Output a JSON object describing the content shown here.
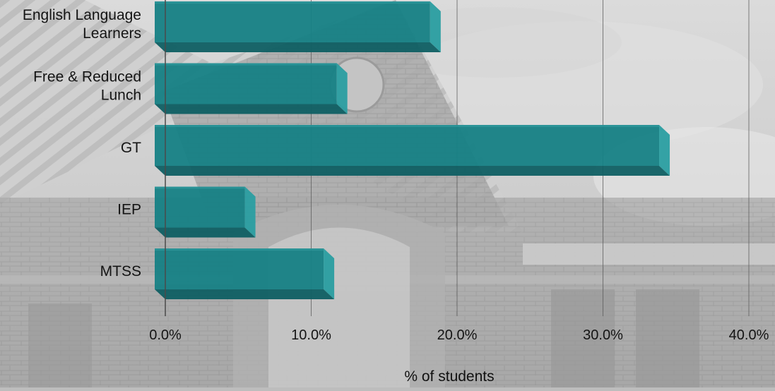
{
  "chart_data": {
    "type": "bar",
    "orientation": "horizontal",
    "style": "3d",
    "categories": [
      [
        "English Language",
        "Learners"
      ],
      [
        "Free & Reduced",
        "Lunch"
      ],
      [
        "GT"
      ],
      [
        "IEP"
      ],
      [
        "MTSS"
      ]
    ],
    "values": [
      18.2,
      11.8,
      33.9,
      5.5,
      10.9
    ],
    "value_unit": "%",
    "xlabel": "% of students",
    "ylabel": "",
    "title": "",
    "xlim": [
      0,
      40
    ],
    "xticks": [
      0,
      10,
      20,
      30,
      40
    ],
    "xtick_labels": [
      "0.0%",
      "10.0%",
      "20.0%",
      "30.0%",
      "40.0%"
    ],
    "grid": "vertical",
    "legend": "none",
    "bar_color": "#168185",
    "background": "faded grayscale photo of a brick school building under a cloudy sky"
  }
}
